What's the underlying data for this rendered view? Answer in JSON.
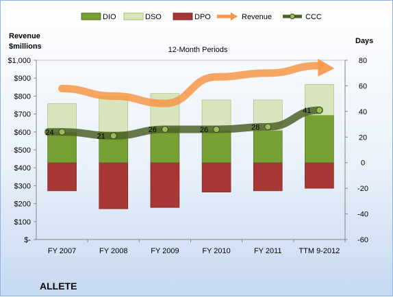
{
  "chart_data": {
    "type": "bar",
    "title": "12-Month Periods",
    "company": "ALLETE",
    "ylabel_left": [
      "Revenue",
      "$millions"
    ],
    "ylabel_right": "Days",
    "categories": [
      "FY 2007",
      "FY 2008",
      "FY 2009",
      "FY 2010",
      "FY 2011",
      "TTM 9-2012"
    ],
    "ylim_left": [
      0,
      1000
    ],
    "ylim_right": [
      -60,
      80
    ],
    "yticks_left": [
      "$1,000",
      "$900",
      "$800",
      "$700",
      "$600",
      "$500",
      "$400",
      "$300",
      "$200",
      "$100",
      "$-"
    ],
    "yticks_right": [
      "80",
      "60",
      "40",
      "20",
      "0",
      "-20",
      "-40",
      "-60"
    ],
    "legend_position": "top",
    "legend": [
      "DIO",
      "DSO",
      "DPO",
      "Revenue",
      "CCC"
    ],
    "series": [
      {
        "name": "DIO",
        "axis": "right",
        "type": "stacked-bar",
        "color": "#77a033",
        "values": [
          24,
          24,
          27,
          25,
          25,
          37
        ]
      },
      {
        "name": "DSO",
        "axis": "right",
        "type": "stacked-bar",
        "color": "#d7e4bd",
        "values": [
          22,
          28,
          27,
          24,
          24,
          24
        ]
      },
      {
        "name": "DPO",
        "axis": "right",
        "type": "bar-negative",
        "color": "#a73734",
        "values": [
          -22,
          -36,
          -35,
          -23,
          -22,
          -20
        ]
      },
      {
        "name": "Revenue",
        "axis": "left",
        "type": "line",
        "color": "#f79646",
        "values": [
          842,
          800,
          759,
          907,
          928,
          970
        ]
      },
      {
        "name": "CCC",
        "axis": "right",
        "type": "line",
        "color": "#4f6228",
        "values": [
          24,
          21,
          26,
          26,
          28,
          41
        ],
        "labels": [
          "24",
          "21",
          "26",
          "26",
          "28",
          "41"
        ]
      }
    ]
  }
}
